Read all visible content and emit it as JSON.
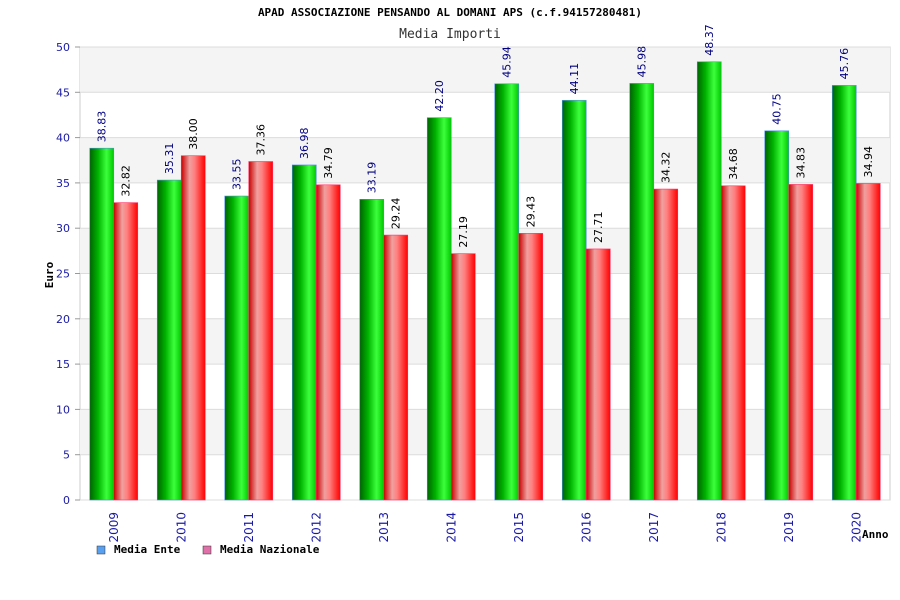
{
  "chart_data": {
    "type": "bar",
    "title": "APAD ASSOCIAZIONE PENSANDO AL DOMANI APS (c.f.94157280481)",
    "subtitle": "Media Importi",
    "xlabel": "Anno",
    "ylabel": "Euro",
    "ylim": [
      0,
      50
    ],
    "yticks": [
      "0",
      "5",
      "10",
      "15",
      "20",
      "25",
      "30",
      "35",
      "40",
      "45",
      "50"
    ],
    "grid": true,
    "legend_position": "bottom-left",
    "categories": [
      "2009",
      "2010",
      "2011",
      "2012",
      "2013",
      "2014",
      "2015",
      "2016",
      "2017",
      "2018",
      "2019",
      "2020"
    ],
    "series": [
      {
        "name": "Media Ente",
        "color": "#00c000",
        "legend_color": "#5aa0f0",
        "label_color": "#000080",
        "values": [
          38.83,
          35.31,
          33.55,
          36.98,
          33.19,
          42.2,
          45.94,
          44.11,
          45.98,
          48.37,
          40.75,
          45.76
        ],
        "labels": [
          "38.83",
          "35.31",
          "33.55",
          "36.98",
          "33.19",
          "42.20",
          "45.94",
          "44.11",
          "45.98",
          "48.37",
          "40.75",
          "45.76"
        ]
      },
      {
        "name": "Media Nazionale",
        "color": "#f00000",
        "legend_color": "#e070a8",
        "label_color": "#000000",
        "values": [
          32.82,
          38.0,
          37.36,
          34.79,
          29.24,
          27.19,
          29.43,
          27.71,
          34.32,
          34.68,
          34.83,
          34.94
        ],
        "labels": [
          "32.82",
          "38.00",
          "37.36",
          "34.79",
          "29.24",
          "27.19",
          "29.43",
          "27.71",
          "34.32",
          "34.68",
          "34.83",
          "34.94"
        ]
      }
    ]
  }
}
